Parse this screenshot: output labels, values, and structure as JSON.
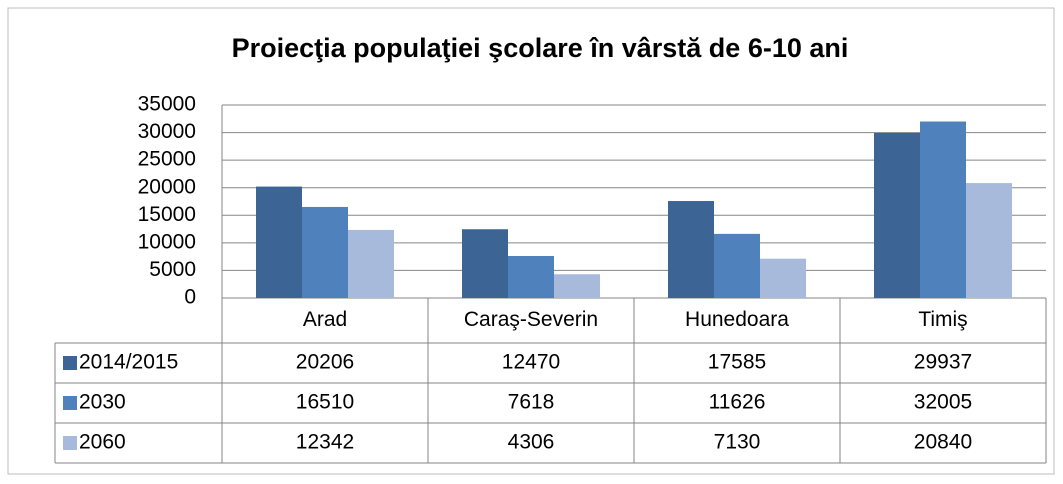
{
  "chart_data": {
    "type": "bar",
    "title": "Proiecţia populaţiei şcolare în vârstă de 6-10 ani",
    "categories": [
      "Arad",
      "Caraş-Severin",
      "Hunedoara",
      "Timiş"
    ],
    "series": [
      {
        "name": "2014/2015",
        "color": "#3c6595",
        "values": [
          20206,
          12470,
          17585,
          29937
        ]
      },
      {
        "name": "2030",
        "color": "#4f81bd",
        "values": [
          16510,
          7618,
          11626,
          32005
        ]
      },
      {
        "name": "2060",
        "color": "#a8badb",
        "values": [
          12342,
          4306,
          7130,
          20840
        ]
      }
    ],
    "ylim": [
      0,
      35000
    ],
    "yticks": [
      0,
      5000,
      10000,
      15000,
      20000,
      25000,
      30000,
      35000
    ],
    "grid": true
  }
}
